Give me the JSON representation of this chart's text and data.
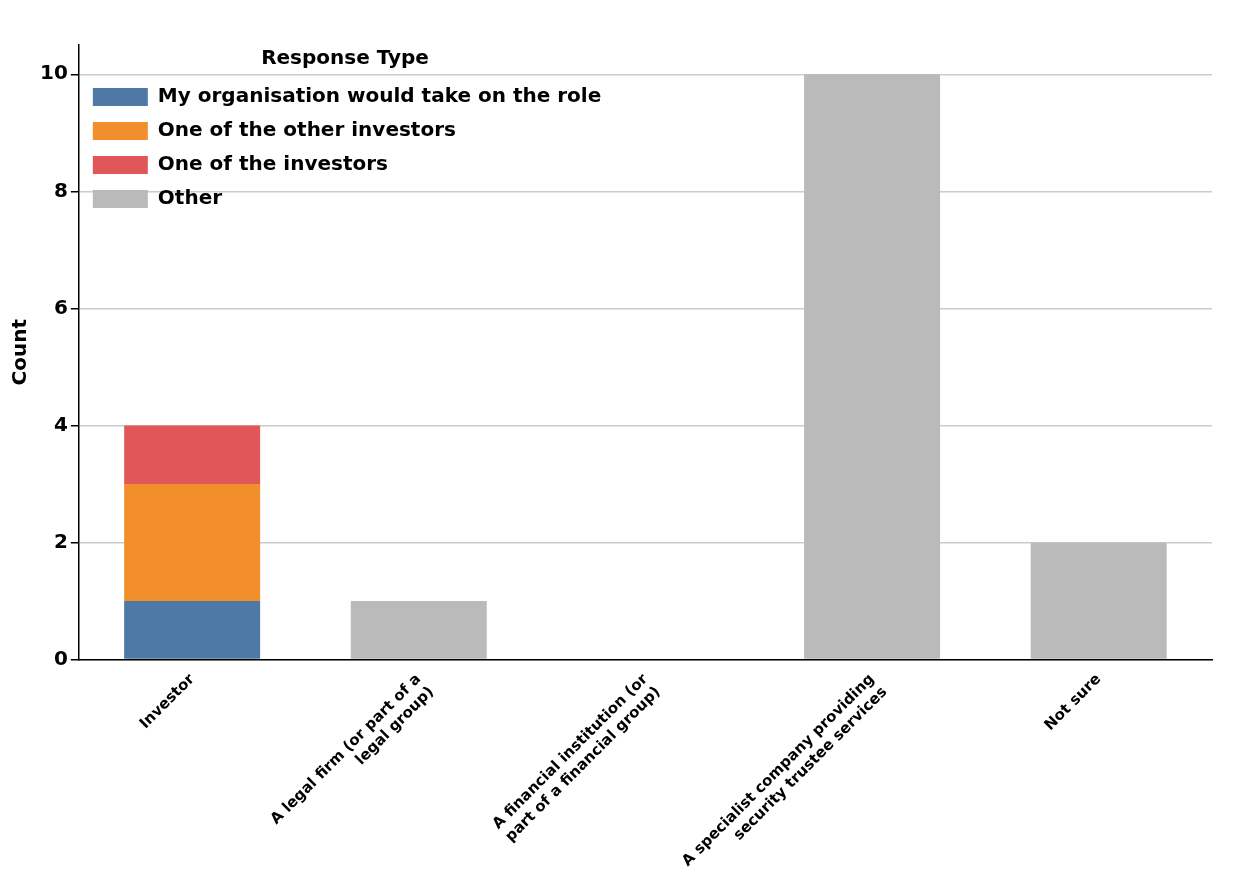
{
  "chart_data": {
    "type": "bar",
    "stacked": true,
    "ylabel": "Count",
    "legend_title": "Response Type",
    "legend": "top left",
    "grid": "y",
    "categories": [
      "Investor",
      "A legal firm (or part of a legal group)",
      "A financial institution (or part of a financial group)",
      "A specialist company providing security trustee services",
      "Not sure"
    ],
    "ylim": [
      0,
      10.5
    ],
    "yticks": [
      0,
      2,
      4,
      6,
      8,
      10
    ],
    "series": [
      {
        "name": "My organisation would take on the role",
        "color": "#4e79a7",
        "values": [
          1,
          0,
          0,
          0,
          0
        ]
      },
      {
        "name": "One of the other investors",
        "color": "#f28e2b",
        "values": [
          2,
          0,
          0,
          0,
          0
        ]
      },
      {
        "name": "One of the investors",
        "color": "#e15759",
        "values": [
          1,
          0,
          0,
          0,
          0
        ]
      },
      {
        "name": "Other",
        "color": "#bababa",
        "values": [
          0,
          1,
          0,
          10,
          2
        ]
      }
    ]
  }
}
